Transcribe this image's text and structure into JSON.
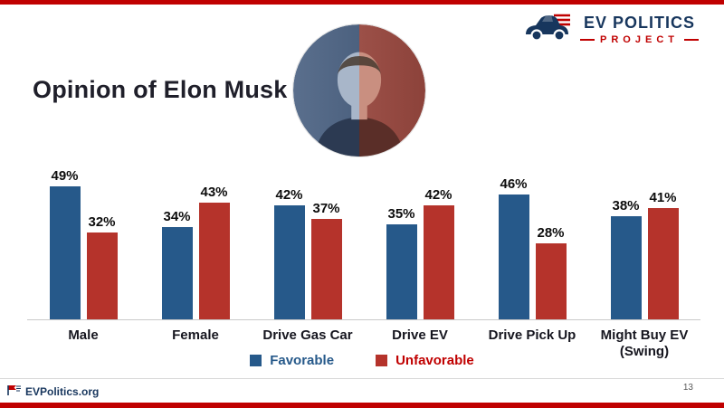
{
  "slide": {
    "title": "Opinion of Elon Musk",
    "page_number": "13"
  },
  "logo": {
    "line1": "EV POLITICS",
    "line2": "PROJECT",
    "icon": "car-icon"
  },
  "footer": {
    "brand": "EVPolitics.org",
    "icon": "flag-icon"
  },
  "photo": {
    "name": "elon-musk-photo",
    "style": "circular, left half blue tint, right half red tint"
  },
  "colors": {
    "favorable_blue": "#26598a",
    "unfavorable_red": "#b5332b",
    "accent_red": "#c00000",
    "logo_navy": "#17365d"
  },
  "chart_data": {
    "type": "bar",
    "title": "Opinion of Elon Musk",
    "categories": [
      "Male",
      "Female",
      "Drive Gas Car",
      "Drive EV",
      "Drive Pick Up",
      "Might Buy EV (Swing)"
    ],
    "series": [
      {
        "name": "Favorable",
        "color": "#26598a",
        "values": [
          49,
          34,
          42,
          35,
          46,
          38
        ]
      },
      {
        "name": "Unfavorable",
        "color": "#b5332b",
        "values": [
          32,
          43,
          37,
          42,
          28,
          41
        ]
      }
    ],
    "data_labels": "percent",
    "ylim": [
      0,
      55
    ],
    "grid": false,
    "legend_position": "bottom"
  }
}
